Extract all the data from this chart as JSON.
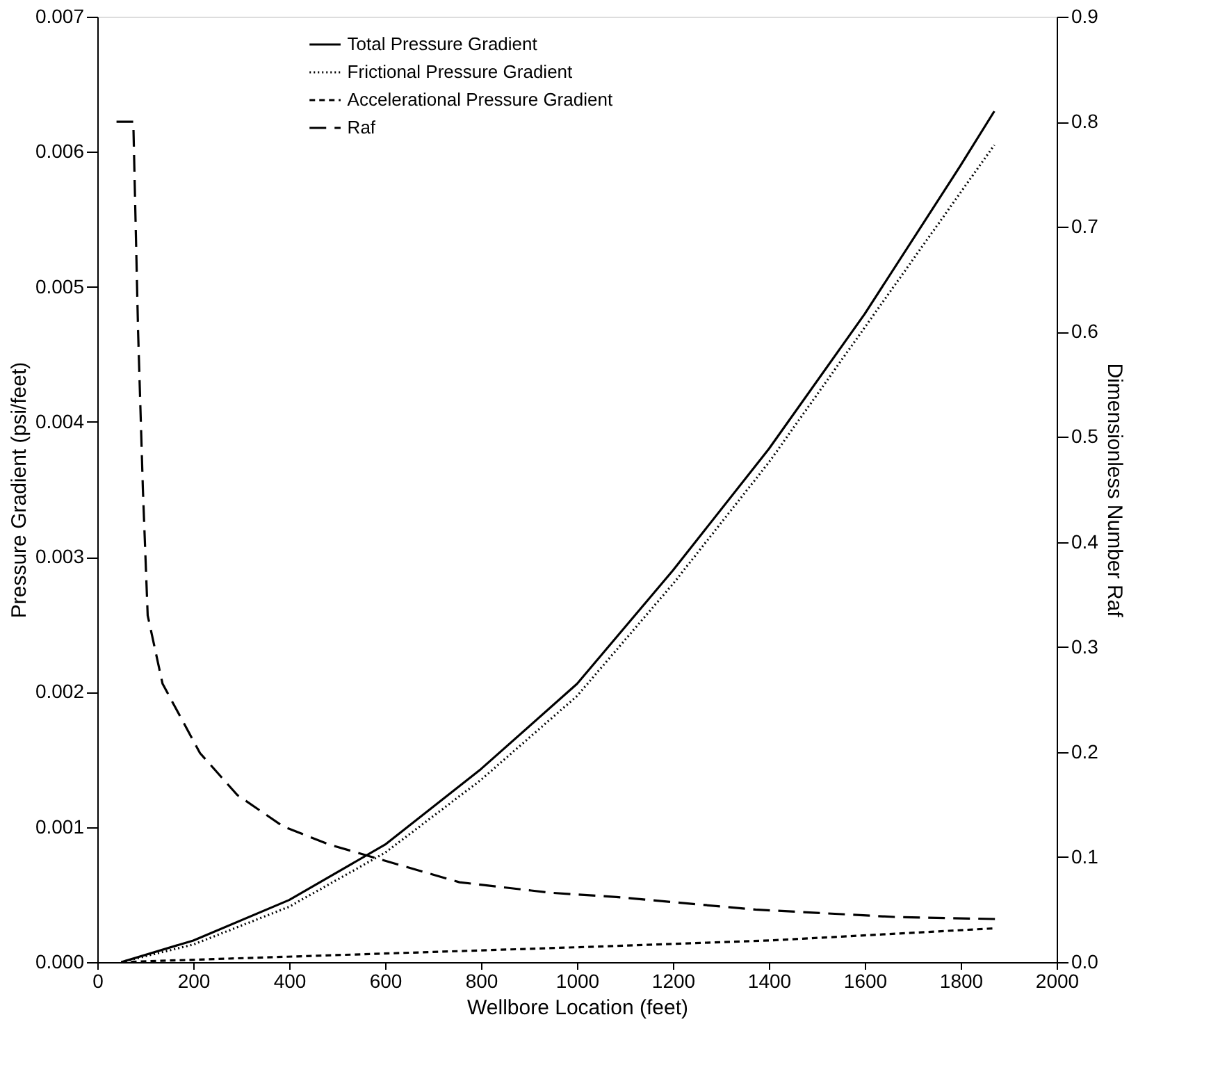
{
  "chart_data": {
    "type": "line",
    "xlabel": "Wellbore Location (feet)",
    "ylabel": "Pressure Gradient (psi/feet)",
    "y2label": "Dimensionless Number Raf",
    "xlim": [
      0,
      2000
    ],
    "xticks": [
      0,
      200,
      400,
      600,
      800,
      1000,
      1200,
      1400,
      1600,
      1800,
      2000
    ],
    "ylim": [
      0,
      0.007
    ],
    "yticks": [
      {
        "value": 0,
        "label": "0.000"
      },
      0.001,
      0.002,
      0.003,
      0.004,
      0.005,
      0.006,
      0.007
    ],
    "y2lim": [
      0,
      0.9
    ],
    "y2ticks": [
      {
        "value": 0,
        "label": "0.0"
      },
      0.1,
      0.2,
      0.3,
      0.4,
      0.5,
      0.6,
      0.7,
      0.8,
      0.9
    ],
    "legend": "top",
    "grid": false,
    "series": [
      {
        "name": "Total Pressure Gradient",
        "color": "#000000",
        "line_style": "solid",
        "x": [
          50,
          200,
          400,
          600,
          800,
          1000,
          1200,
          1400,
          1600,
          1800,
          1870
        ],
        "values": [
          0,
          0.00016,
          0.00046,
          0.00087,
          0.00143,
          0.00206,
          0.0029,
          0.0038,
          0.0048,
          0.0059,
          0.0063
        ]
      },
      {
        "name": "Frictional Pressure Gradient",
        "color": "#000000",
        "line_style": "dotted",
        "x": [
          50,
          200,
          400,
          600,
          800,
          1000,
          1200,
          1400,
          1600,
          1800,
          1870
        ],
        "values": [
          0,
          0.00013,
          0.00041,
          0.00081,
          0.00135,
          0.00197,
          0.0028,
          0.0037,
          0.0047,
          0.0057,
          0.00605
        ]
      },
      {
        "name": "Accelerational Pressure Gradient",
        "color": "#000000",
        "line_style": "dashed",
        "x": [
          50,
          1000,
          1400,
          1870
        ],
        "values": [
          0,
          0.00011,
          0.00016,
          0.00025
        ]
      },
      {
        "name": "Raf",
        "color": "#000000",
        "line_style": "longdash",
        "axis": "y2",
        "x": [
          40,
          75,
          85,
          95,
          105,
          136,
          214,
          292,
          388,
          483,
          581,
          755,
          946,
          1082,
          1372,
          1661,
          1873
        ],
        "values": [
          0.8,
          0.8,
          0.6,
          0.45,
          0.33,
          0.265,
          0.199,
          0.159,
          0.129,
          0.112,
          0.099,
          0.076,
          0.066,
          0.062,
          0.05,
          0.043,
          0.041
        ]
      }
    ]
  }
}
